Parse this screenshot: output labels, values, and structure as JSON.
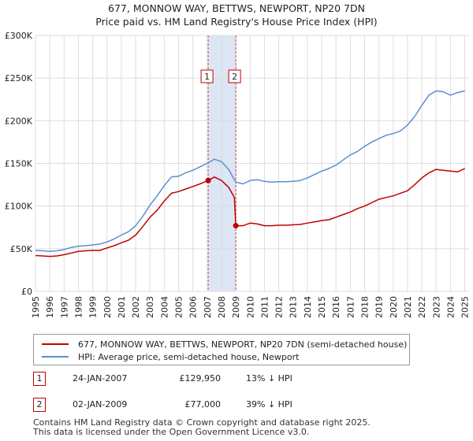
{
  "chart_data": {
    "type": "line",
    "title": "677, MONNOW WAY, BETTWS, NEWPORT, NP20 7DN",
    "subtitle": "Price paid vs. HM Land Registry's House Price Index (HPI)",
    "xlabel": "",
    "ylabel": "",
    "xlim": [
      1995,
      2025.3
    ],
    "ylim": [
      0,
      300000
    ],
    "x_ticks": [
      "1995",
      "1996",
      "1997",
      "1998",
      "1999",
      "2000",
      "2001",
      "2002",
      "2003",
      "2004",
      "2005",
      "2006",
      "2007",
      "2008",
      "2009",
      "2010",
      "2011",
      "2012",
      "2013",
      "2014",
      "2015",
      "2016",
      "2017",
      "2018",
      "2019",
      "2020",
      "2021",
      "2022",
      "2023",
      "2024",
      "2025"
    ],
    "y_ticks": [
      {
        "value": 0,
        "label": "£0"
      },
      {
        "value": 50000,
        "label": "£50K"
      },
      {
        "value": 100000,
        "label": "£100K"
      },
      {
        "value": 150000,
        "label": "£150K"
      },
      {
        "value": 200000,
        "label": "£200K"
      },
      {
        "value": 250000,
        "label": "£250K"
      },
      {
        "value": 300000,
        "label": "£300K"
      }
    ],
    "grid": true,
    "series": [
      {
        "name": "677, MONNOW WAY, BETTWS, NEWPORT, NP20 7DN (semi-detached house)",
        "color": "#c00000",
        "x": [
          1995.0,
          1995.5,
          1996.0,
          1996.5,
          1997.0,
          1997.5,
          1998.0,
          1998.5,
          1999.0,
          1999.5,
          2000.0,
          2000.5,
          2001.0,
          2001.5,
          2002.0,
          2002.5,
          2003.0,
          2003.5,
          2004.0,
          2004.5,
          2005.0,
          2005.5,
          2006.0,
          2006.5,
          2007.07,
          2007.5,
          2008.0,
          2008.5,
          2008.9,
          2009.0,
          2009.5,
          2010.0,
          2010.5,
          2011.0,
          2011.5,
          2012.0,
          2012.5,
          2013.0,
          2013.5,
          2014.0,
          2014.5,
          2015.0,
          2015.5,
          2016.0,
          2016.5,
          2017.0,
          2017.5,
          2018.0,
          2018.5,
          2019.0,
          2019.5,
          2020.0,
          2020.5,
          2021.0,
          2021.5,
          2022.0,
          2022.5,
          2023.0,
          2023.5,
          2024.0,
          2024.5,
          2025.0
        ],
        "values": [
          42000,
          41500,
          41000,
          41500,
          43000,
          45000,
          47000,
          47500,
          48000,
          48000,
          51000,
          53500,
          57000,
          60000,
          66000,
          76000,
          87000,
          95000,
          106000,
          115000,
          117000,
          120000,
          123000,
          126000,
          129950,
          134000,
          130000,
          122000,
          110000,
          77000,
          77000,
          80000,
          79000,
          77000,
          77000,
          77500,
          77500,
          78000,
          78500,
          80000,
          81500,
          83000,
          84000,
          87000,
          90000,
          93000,
          97000,
          100000,
          104000,
          108000,
          110000,
          112000,
          115000,
          118000,
          125000,
          133000,
          139000,
          143000,
          142000,
          141000,
          140000,
          144000
        ]
      },
      {
        "name": "HPI: Average price, semi-detached house, Newport",
        "color": "#5b8fcb",
        "x": [
          1995.0,
          1995.5,
          1996.0,
          1996.5,
          1997.0,
          1997.5,
          1998.0,
          1998.5,
          1999.0,
          1999.5,
          2000.0,
          2000.5,
          2001.0,
          2001.5,
          2002.0,
          2002.5,
          2003.0,
          2003.5,
          2004.0,
          2004.5,
          2005.0,
          2005.5,
          2006.0,
          2006.5,
          2007.0,
          2007.5,
          2008.0,
          2008.5,
          2009.0,
          2009.5,
          2010.0,
          2010.5,
          2011.0,
          2011.5,
          2012.0,
          2012.5,
          2013.0,
          2013.5,
          2014.0,
          2014.5,
          2015.0,
          2015.5,
          2016.0,
          2016.5,
          2017.0,
          2017.5,
          2018.0,
          2018.5,
          2019.0,
          2019.5,
          2020.0,
          2020.5,
          2021.0,
          2021.5,
          2022.0,
          2022.5,
          2023.0,
          2023.5,
          2024.0,
          2024.5,
          2025.0
        ],
        "values": [
          48000,
          47500,
          47000,
          47500,
          49000,
          51500,
          53000,
          53500,
          54500,
          55500,
          58000,
          61500,
          66000,
          70000,
          77000,
          88000,
          101000,
          112000,
          124000,
          134000,
          135000,
          139000,
          142000,
          146000,
          150000,
          155000,
          152000,
          143000,
          128000,
          126000,
          130000,
          131000,
          129000,
          128000,
          128500,
          128500,
          129000,
          130000,
          133000,
          137000,
          141000,
          144000,
          148000,
          154000,
          160000,
          164000,
          170000,
          175000,
          179000,
          183000,
          185000,
          188000,
          195000,
          205000,
          218000,
          230000,
          235000,
          234000,
          230000,
          233000,
          235000
        ]
      }
    ],
    "transactions": [
      {
        "id": "1",
        "date": "24-JAN-2007",
        "x": 2007.07,
        "price_value": 129950,
        "price": "£129,950",
        "hpi": "13% ↓ HPI"
      },
      {
        "id": "2",
        "date": "02-JAN-2009",
        "x": 2009.0,
        "price_value": 77000,
        "price": "£77,000",
        "hpi": "39% ↓ HPI"
      }
    ],
    "shaded_range": [
      2007.07,
      2009.0
    ],
    "shade_color": "#dce6f4",
    "grid_color": "#dddddd"
  },
  "footer": {
    "line1": "Contains HM Land Registry data © Crown copyright and database right 2025.",
    "line2": "This data is licensed under the Open Government Licence v3.0."
  }
}
